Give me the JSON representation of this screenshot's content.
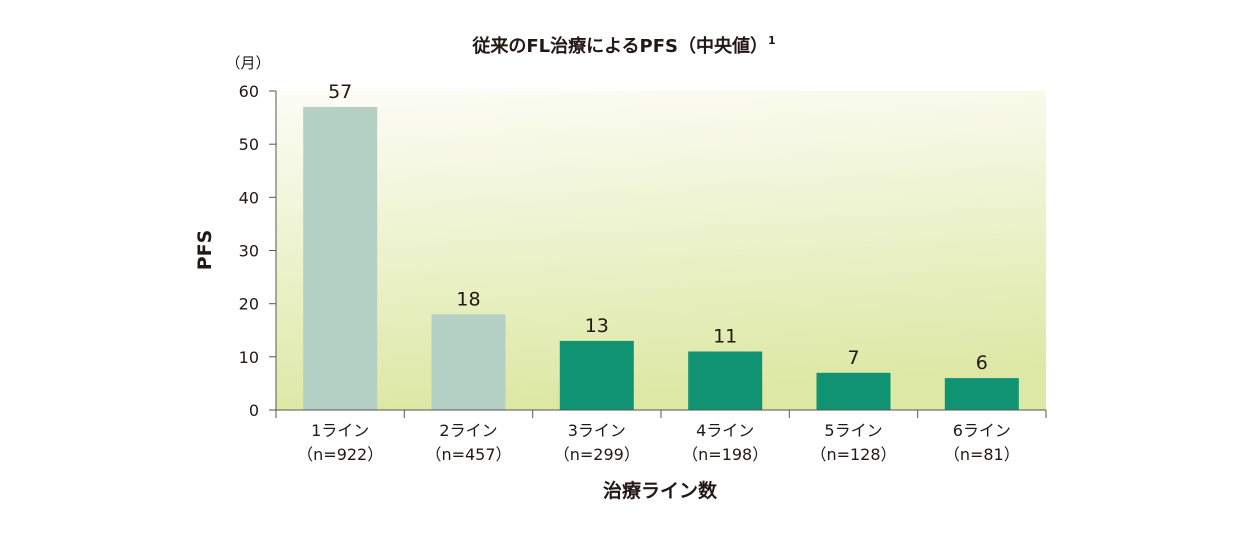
{
  "chart_data": {
    "type": "bar",
    "title": "従来のFL治療によるPFS（中央値）",
    "title_note": "1",
    "y_unit": "（月）",
    "ylabel": "PFS",
    "xlabel": "治療ライン数",
    "categories": [
      "1ライン",
      "2ライン",
      "3ライン",
      "4ライン",
      "5ライン",
      "6ライン"
    ],
    "category_notes": [
      "（n=922）",
      "（n=457）",
      "（n=299）",
      "（n=198）",
      "（n=128）",
      "（n=81）"
    ],
    "values": [
      57,
      18,
      13,
      11,
      7,
      6
    ],
    "ylim": [
      0,
      60
    ],
    "yticks": [
      0,
      10,
      20,
      30,
      40,
      50,
      60
    ],
    "grid": false,
    "bar_colors": [
      "#b4d0c4",
      "#b4d0c4",
      "#0f9373",
      "#0f9373",
      "#0f9373",
      "#0f9373"
    ],
    "colors": {
      "plot_bg_top": "#fdfdf7",
      "plot_bg_bottom": "#dde8a5",
      "axis": "#555555",
      "text": "#231815"
    }
  }
}
